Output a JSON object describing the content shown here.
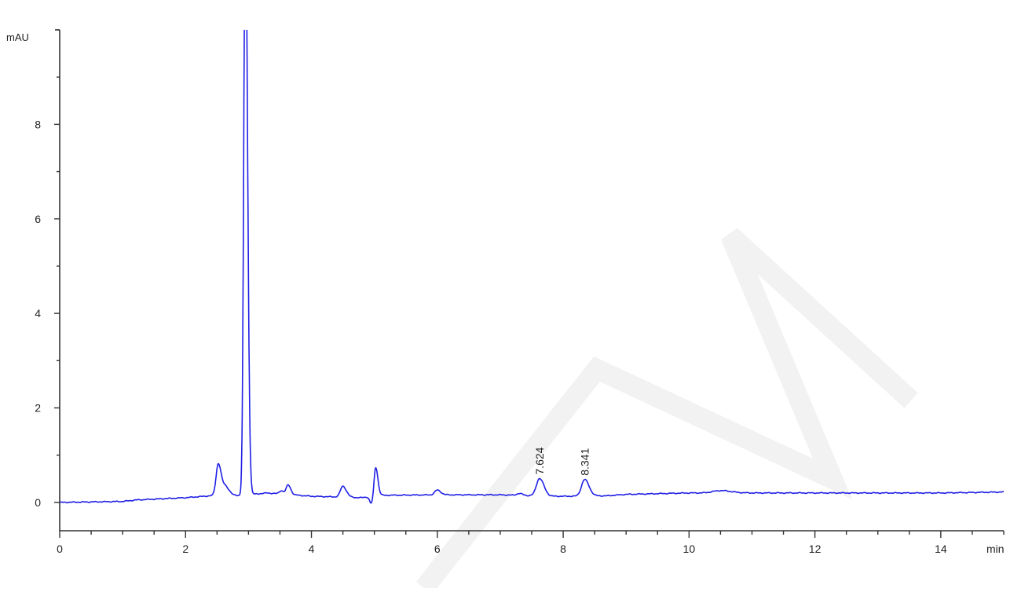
{
  "chart_data": {
    "type": "line",
    "title": "",
    "xlabel": "min",
    "ylabel": "mAU",
    "xlim": [
      0,
      15
    ],
    "ylim": [
      -0.6,
      10
    ],
    "x_ticks": [
      0,
      2,
      4,
      6,
      8,
      10,
      12,
      14
    ],
    "y_ticks": [
      0,
      2,
      4,
      6,
      8
    ],
    "x_minor_step": 0.5,
    "y_minor_step": 1,
    "grid": false,
    "line_color": "#1f1fe6",
    "baseline": [
      [
        0,
        0.0
      ],
      [
        1,
        0.02
      ],
      [
        1.2,
        0.05
      ],
      [
        2,
        0.1
      ],
      [
        2.4,
        0.14
      ],
      [
        2.9,
        0.15
      ],
      [
        3.3,
        0.2
      ],
      [
        4.0,
        0.13
      ],
      [
        4.8,
        0.1
      ],
      [
        5.1,
        0.15
      ],
      [
        6,
        0.16
      ],
      [
        7,
        0.16
      ],
      [
        7.8,
        0.13
      ],
      [
        8.1,
        0.13
      ],
      [
        8.7,
        0.14
      ],
      [
        9,
        0.17
      ],
      [
        10,
        0.2
      ],
      [
        12,
        0.2
      ],
      [
        14,
        0.2
      ],
      [
        15,
        0.22
      ]
    ],
    "peaks": [
      {
        "rt": 2.52,
        "height": 0.68,
        "width": 0.035
      },
      {
        "rt": 2.64,
        "height": 0.18,
        "width": 0.04
      },
      {
        "rt": 2.95,
        "height": 12.5,
        "width": 0.025
      },
      {
        "rt": 3.52,
        "height": 0.07,
        "width": 0.03
      },
      {
        "rt": 3.63,
        "height": 0.2,
        "width": 0.03
      },
      {
        "rt": 4.5,
        "height": 0.23,
        "width": 0.04
      },
      {
        "rt": 4.95,
        "height": -0.15,
        "width": 0.025
      },
      {
        "rt": 5.02,
        "height": 0.62,
        "width": 0.025
      },
      {
        "rt": 6.0,
        "height": 0.1,
        "width": 0.04
      },
      {
        "rt": 7.3,
        "height": 0.04,
        "width": 0.04
      },
      {
        "rt": 7.624,
        "height": 0.37,
        "width": 0.05
      },
      {
        "rt": 8.341,
        "height": 0.35,
        "width": 0.05
      },
      {
        "rt": 10.5,
        "height": 0.05,
        "width": 0.12
      }
    ],
    "annotations": [
      {
        "x": 7.624,
        "y": 0.52,
        "label": "7.624"
      },
      {
        "x": 8.341,
        "y": 0.5,
        "label": "8.341"
      }
    ]
  }
}
